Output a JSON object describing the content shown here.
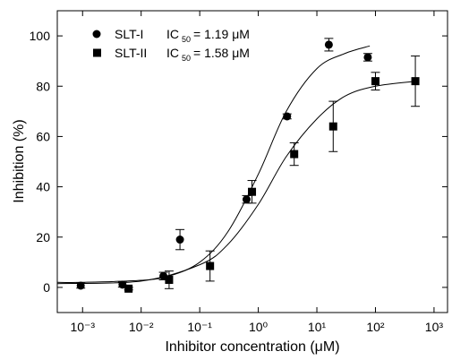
{
  "chart_data": {
    "type": "scatter",
    "xlabel": "Inhibitor concentration  (μM)",
    "ylabel": "Inhibition (%)",
    "xscale": "log",
    "xlim": [
      0.00037,
      1700
    ],
    "ylim": [
      -10,
      110
    ],
    "xticks": [
      {
        "value": 0.001,
        "label": "10⁻³"
      },
      {
        "value": 0.01,
        "label": "10⁻²"
      },
      {
        "value": 0.1,
        "label": "10⁻¹"
      },
      {
        "value": 1,
        "label": "10⁰"
      },
      {
        "value": 10,
        "label": "10¹"
      },
      {
        "value": 100,
        "label": "10²"
      },
      {
        "value": 1000,
        "label": "10³"
      }
    ],
    "yticks": [
      0,
      20,
      40,
      60,
      80,
      100
    ],
    "legend_position": "upper left",
    "series": [
      {
        "name": "SLT-I",
        "ic_label": "IC",
        "ic_sub": "50",
        "ic_value": "= 1.19 μM",
        "marker": "circle",
        "color": "#000000",
        "x": [
          0.00093,
          0.0048,
          0.024,
          0.046,
          0.63,
          3.1,
          16,
          74
        ],
        "values": [
          0.7,
          1.1,
          4.5,
          19,
          35,
          68,
          96.5,
          91.5
        ],
        "errors": [
          1,
          1,
          1.5,
          4,
          1.5,
          1,
          2.5,
          1.5
        ],
        "fit": {
          "x": [
            0.00037,
            0.001,
            0.01,
            0.03,
            0.1,
            0.3,
            1,
            3,
            10,
            30,
            80
          ],
          "values": [
            2,
            2,
            2.8,
            4.5,
            10,
            22,
            45,
            70,
            87,
            93,
            96
          ]
        }
      },
      {
        "name": "SLT-II",
        "ic_label": "IC",
        "ic_sub": "50",
        "ic_value": "= 1.58 μM",
        "marker": "square",
        "color": "#000000",
        "x": [
          0.0061,
          0.03,
          0.15,
          0.78,
          4.1,
          19,
          100,
          480
        ],
        "values": [
          -0.5,
          3,
          8.5,
          38,
          53,
          64,
          82,
          82
        ],
        "errors": [
          0.5,
          3.5,
          6,
          4.5,
          4.5,
          10,
          3.5,
          10
        ],
        "fit": {
          "x": [
            0.00037,
            0.01,
            0.1,
            0.3,
            1,
            3,
            10,
            30,
            100,
            500
          ],
          "values": [
            1.5,
            2.5,
            9,
            17,
            33,
            52,
            67,
            76,
            80,
            82
          ]
        }
      }
    ]
  }
}
